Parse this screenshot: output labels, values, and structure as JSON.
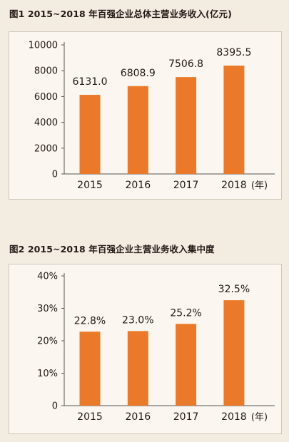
{
  "colors": {
    "bar": "#ea7a2a",
    "axis": "#555555",
    "background": "#f3ece1",
    "panel": "#fbf7f0"
  },
  "chart_data": [
    {
      "type": "bar",
      "title": "图1 2015~2018 年百强企业总体主营业务收入(亿元)",
      "xlabel": "(年)",
      "ylabel": "",
      "categories": [
        "2015",
        "2016",
        "2017",
        "2018"
      ],
      "values": [
        6131.0,
        6808.9,
        7506.8,
        8395.5
      ],
      "data_labels": [
        "6131.0",
        "6808.9",
        "7506.8",
        "8395.5"
      ],
      "yticks": [
        "0",
        "2000",
        "4000",
        "6000",
        "8000",
        "10000"
      ],
      "ytick_values": [
        0,
        2000,
        4000,
        6000,
        8000,
        10000
      ],
      "ylim": [
        0,
        10000
      ],
      "grid": false,
      "legend": "none"
    },
    {
      "type": "bar",
      "title": "图2 2015~2018 年百强企业主营业务收入集中度",
      "xlabel": "(年)",
      "ylabel": "",
      "categories": [
        "2015",
        "2016",
        "2017",
        "2018"
      ],
      "values": [
        22.8,
        23.0,
        25.2,
        32.5
      ],
      "data_labels": [
        "22.8%",
        "23.0%",
        "25.2%",
        "32.5%"
      ],
      "yticks": [
        "0",
        "10%",
        "20%",
        "30%",
        "40%"
      ],
      "ytick_values": [
        0,
        10,
        20,
        30,
        40
      ],
      "ylim": [
        0,
        40
      ],
      "grid": false,
      "legend": "none"
    }
  ]
}
